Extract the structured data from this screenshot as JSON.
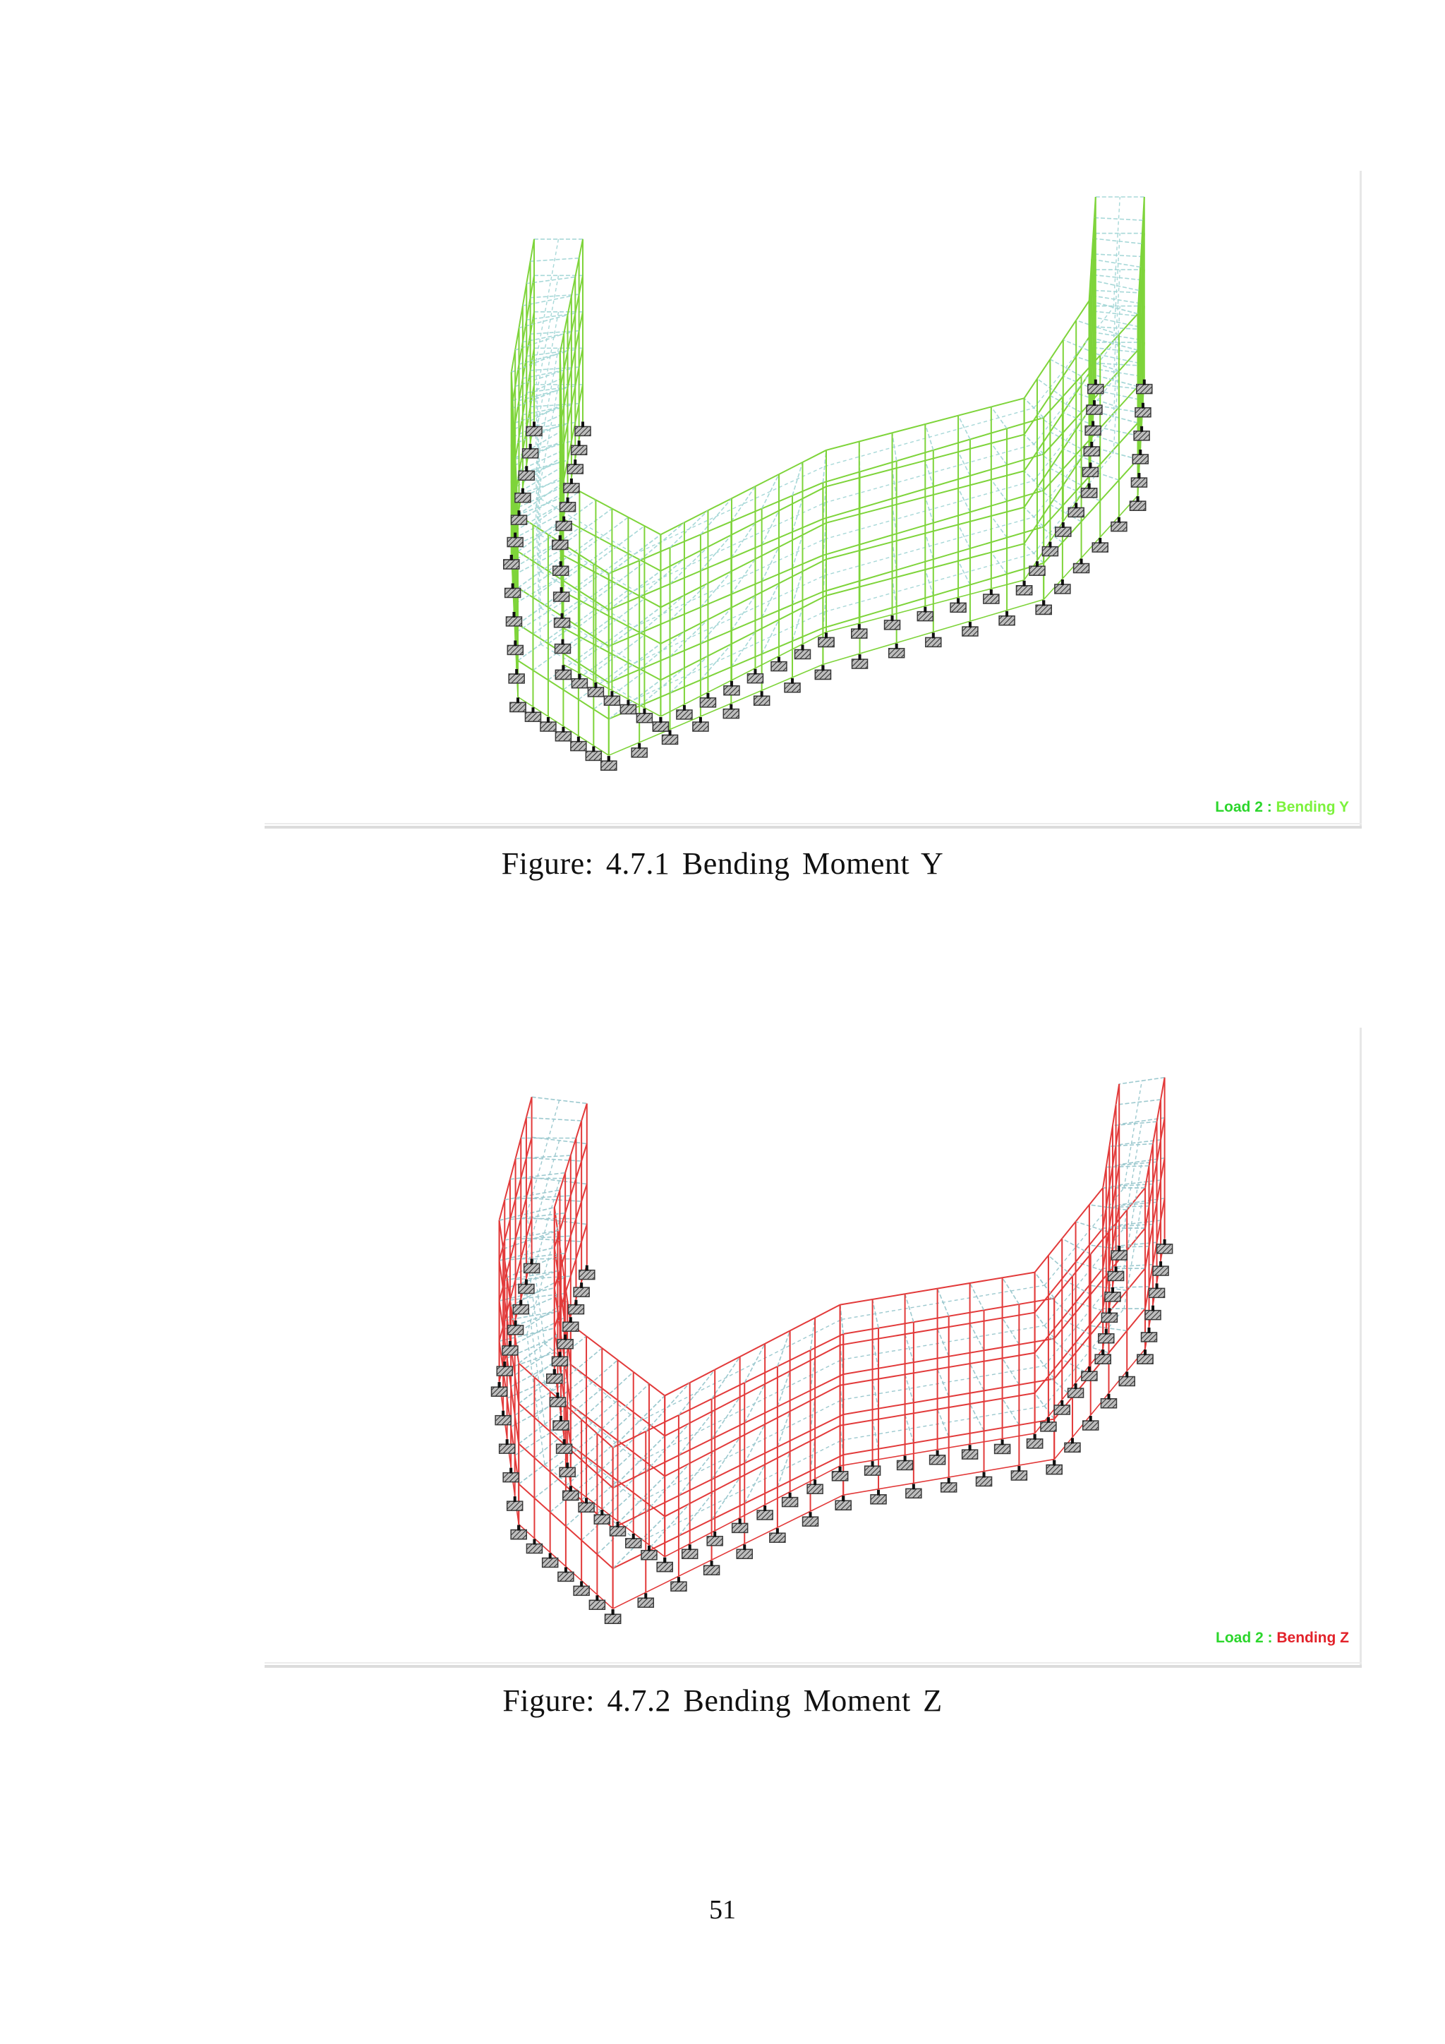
{
  "figures": [
    {
      "caption": "Figure: 4.7.1 Bending Moment Y",
      "label_prefix": "Load 2 : ",
      "label_value": "Bending Y",
      "frame_color": "#7ed43a",
      "beam_color": "#a7d8d8",
      "support_color": "#3a3a3a",
      "support_icon": "hatched-fixed-support"
    },
    {
      "caption": "Figure: 4.7.2  Bending Moment Z",
      "label_prefix": "Load 2 : ",
      "label_value": "Bending Z",
      "frame_color": "#e23a3a",
      "beam_color": "#9cc9cf",
      "support_color": "#3a3a3a",
      "support_icon": "hatched-fixed-support"
    }
  ],
  "page_number": "51"
}
